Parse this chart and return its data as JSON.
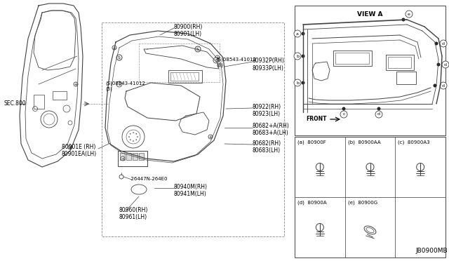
{
  "bg_color": "#ffffff",
  "fig_width": 6.4,
  "fig_height": 3.72,
  "lc": "#404040",
  "tc": "#000000",
  "labels": {
    "sec800": "SEC.800",
    "80900RH": "80900(RH)",
    "80901LH": "80901(LH)",
    "S08543_5": "(S)08543-41012\n(5)",
    "S08543_8": "(S)08543-41012\n(8)",
    "80932P_RH": "80932P(RH)",
    "80933P_LH": "80933P(LH)",
    "80922_RH": "80922(RH)",
    "80923_LH": "80923(LH)",
    "80682A_RH": "80682+A(RH)",
    "80683A_LH": "80683+A(LH)",
    "80682_RH": "80682(RH)",
    "80683_LH": "80683(LH)",
    "26447N": "-26447N-264E0",
    "80940M_RH": "80940M(RH)",
    "80941M_LH": "80941M(LH)",
    "80960_RH": "80960(RH)",
    "80961_LH": "80961(LH)",
    "80901E_RH": "80901E (RH)",
    "80901EA_LH": "80901EA(LH)",
    "view_a": "VIEW A",
    "front": "FRONT",
    "a_80900F": "(a)  80900F",
    "b_80900AA": "(b)  80900AA",
    "c_80900A3": "(c)  80900A3",
    "d_80900A": "(d)  80900A",
    "e_80900G": "(e)  80900G",
    "jb0900mb": "JB0900MB"
  }
}
